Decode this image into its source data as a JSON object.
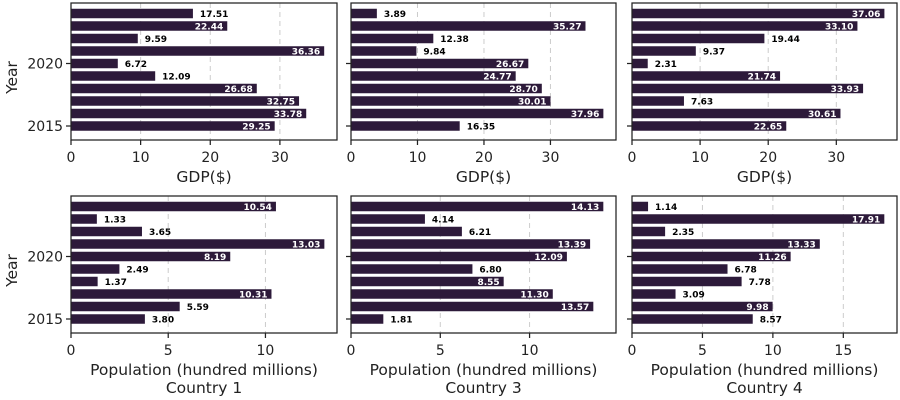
{
  "style": {
    "bar_color": "#2d1a3a",
    "label_inside_color": "#ffffff",
    "label_outside_color": "#000000"
  },
  "chart_data": [
    {
      "type": "bar",
      "orientation": "horizontal",
      "ylabel": "Year",
      "xlabel": "GDP($)",
      "years": [
        2015,
        2016,
        2017,
        2018,
        2019,
        2020,
        2021,
        2022,
        2023,
        2024
      ],
      "values": [
        29.25,
        33.78,
        32.75,
        26.68,
        12.09,
        6.72,
        36.36,
        9.59,
        22.44,
        17.51
      ],
      "value_labels": [
        "29.25",
        "33.78",
        "32.75",
        "26.68",
        "12.09",
        "6.72",
        "36.36",
        "9.59",
        "22.44",
        "17.51"
      ],
      "xlim": [
        0,
        38.2
      ],
      "xticks": [
        0,
        10,
        20,
        30
      ],
      "xtick_labels": [
        "0",
        "10",
        "20",
        "30"
      ],
      "ytick_labels": [
        "2015",
        "2020"
      ],
      "grid": true
    },
    {
      "type": "bar",
      "orientation": "horizontal",
      "ylabel": "",
      "xlabel": "GDP($)",
      "years": [
        2015,
        2016,
        2017,
        2018,
        2019,
        2020,
        2021,
        2022,
        2023,
        2024
      ],
      "values": [
        16.35,
        37.96,
        30.01,
        28.7,
        24.77,
        26.67,
        9.84,
        12.38,
        35.27,
        3.89
      ],
      "value_labels": [
        "16.35",
        "37.96",
        "30.01",
        "28.70",
        "24.77",
        "26.67",
        "9.84",
        "12.38",
        "35.27",
        "3.89"
      ],
      "xlim": [
        0,
        39.86
      ],
      "xticks": [
        0,
        10,
        20,
        30
      ],
      "xtick_labels": [
        "0",
        "10",
        "20",
        "30"
      ],
      "ytick_labels": [
        "",
        ""
      ],
      "grid": true
    },
    {
      "type": "bar",
      "orientation": "horizontal",
      "ylabel": "",
      "xlabel": "GDP($)",
      "years": [
        2015,
        2016,
        2017,
        2018,
        2019,
        2020,
        2021,
        2022,
        2023,
        2024
      ],
      "values": [
        22.65,
        30.61,
        7.63,
        33.93,
        21.74,
        2.31,
        9.37,
        19.44,
        33.1,
        37.06
      ],
      "value_labels": [
        "22.65",
        "30.61",
        "7.63",
        "33.93",
        "21.74",
        "2.31",
        "9.37",
        "19.44",
        "33.10",
        "37.06"
      ],
      "xlim": [
        0,
        38.91
      ],
      "xticks": [
        0,
        10,
        20,
        30
      ],
      "xtick_labels": [
        "0",
        "10",
        "20",
        "30"
      ],
      "ytick_labels": [
        "",
        ""
      ],
      "grid": true
    },
    {
      "type": "bar",
      "orientation": "horizontal",
      "ylabel": "Year",
      "xlabel": "Population (hundred millions)",
      "subtitle": "Country 1",
      "years": [
        2015,
        2016,
        2017,
        2018,
        2019,
        2020,
        2021,
        2022,
        2023,
        2024
      ],
      "values": [
        3.8,
        5.59,
        10.31,
        1.37,
        2.49,
        8.19,
        13.03,
        3.65,
        1.33,
        10.54
      ],
      "value_labels": [
        "3.80",
        "5.59",
        "10.31",
        "1.37",
        "2.49",
        "8.19",
        "13.03",
        "3.65",
        "1.33",
        "10.54"
      ],
      "xlim": [
        0,
        13.68
      ],
      "xticks": [
        0,
        5,
        10
      ],
      "xtick_labels": [
        "0",
        "5",
        "10"
      ],
      "ytick_labels": [
        "2015",
        "2020"
      ],
      "grid": true
    },
    {
      "type": "bar",
      "orientation": "horizontal",
      "ylabel": "",
      "xlabel": "Population (hundred millions)",
      "subtitle": "Country 3",
      "years": [
        2015,
        2016,
        2017,
        2018,
        2019,
        2020,
        2021,
        2022,
        2023,
        2024
      ],
      "values": [
        1.81,
        13.57,
        11.3,
        8.55,
        6.8,
        12.09,
        13.39,
        6.21,
        4.14,
        14.13
      ],
      "value_labels": [
        "1.81",
        "13.57",
        "11.30",
        "8.55",
        "6.80",
        "12.09",
        "13.39",
        "6.21",
        "4.14",
        "14.13"
      ],
      "xlim": [
        0,
        14.84
      ],
      "xticks": [
        0,
        5,
        10
      ],
      "xtick_labels": [
        "0",
        "5",
        "10"
      ],
      "ytick_labels": [
        "",
        ""
      ],
      "grid": true
    },
    {
      "type": "bar",
      "orientation": "horizontal",
      "ylabel": "",
      "xlabel": "Population (hundred millions)",
      "subtitle": "Country 4",
      "years": [
        2015,
        2016,
        2017,
        2018,
        2019,
        2020,
        2021,
        2022,
        2023,
        2024
      ],
      "values": [
        8.57,
        9.98,
        3.09,
        7.78,
        6.78,
        11.26,
        13.33,
        2.35,
        17.91,
        1.14
      ],
      "value_labels": [
        "8.57",
        "9.98",
        "3.09",
        "7.78",
        "6.78",
        "11.26",
        "13.33",
        "2.35",
        "17.91",
        "1.14"
      ],
      "xlim": [
        0,
        18.81
      ],
      "xticks": [
        0,
        5,
        10,
        15
      ],
      "xtick_labels": [
        "0",
        "5",
        "10",
        "15"
      ],
      "ytick_labels": [
        "",
        ""
      ],
      "grid": true
    }
  ]
}
